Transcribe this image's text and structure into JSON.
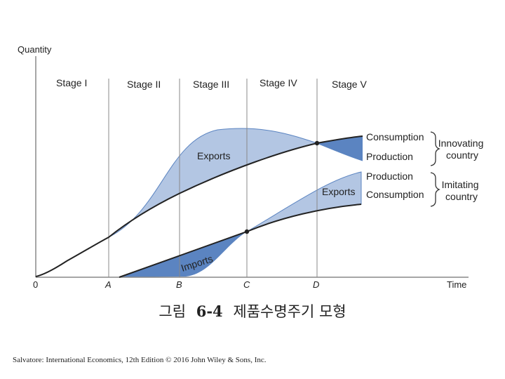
{
  "diagram": {
    "y_axis_label": "Quantity",
    "x_axis_label": "Time",
    "origin_label": "0",
    "time_points": [
      "A",
      "B",
      "C",
      "D"
    ],
    "stages": [
      "Stage I",
      "Stage II",
      "Stage III",
      "Stage IV",
      "Stage V"
    ],
    "area_labels": {
      "exports_innovating": "Exports",
      "exports_imitating": "Exports",
      "imports": "Imports"
    },
    "curve_labels": {
      "innovating_consumption": "Consumption",
      "innovating_production": "Production",
      "imitating_production": "Production",
      "imitating_consumption": "Consumption"
    },
    "groups": {
      "innovating": "Innovating country",
      "imitating": "Imitating country"
    },
    "colors": {
      "light_fill": "#b3c6e3",
      "dark_fill": "#5b84c1",
      "curve": "#222222",
      "fill_edge": "#5b84c1"
    }
  },
  "caption": {
    "prefix": "그림",
    "number": "6-4",
    "title": "제품수명주기 모형"
  },
  "credit": "Salvatore: International Economics, 12th Edition © 2016 John Wiley & Sons, Inc."
}
